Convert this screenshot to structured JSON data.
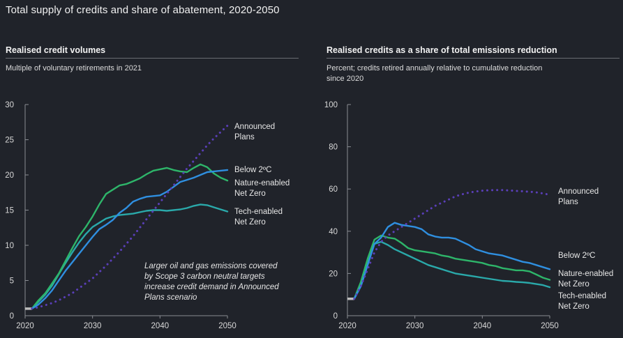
{
  "title": "Total supply of credits and share of abatement, 2020-2050",
  "colors": {
    "announced": "#5a3fb8",
    "below2": "#2f8fe0",
    "nature": "#2eb56a",
    "tech": "#2aa9aa",
    "history": "#bdbdbd",
    "axis": "#8a8d93"
  },
  "chart_data": [
    {
      "type": "line",
      "title": "Realised credit volumes",
      "subtitle": "Multiple of voluntary retirements in 2021",
      "xlim": [
        2020,
        2050
      ],
      "ylim": [
        0,
        30
      ],
      "xticks": [
        "2020",
        "2030",
        "2040",
        "2050"
      ],
      "yticks": [
        "0",
        "5",
        "10",
        "15",
        "20",
        "25",
        "30"
      ],
      "annotation": [
        "Larger oil and gas emissions covered",
        "by Scope 3 carbon neutral targets",
        "increase credit demand in Announced",
        "Plans scenario"
      ],
      "history": {
        "x": [
          2020,
          2021
        ],
        "y": [
          1,
          1
        ]
      },
      "series": [
        {
          "key": "announced",
          "label": [
            "Announced",
            "Plans"
          ],
          "style": "dotted",
          "x": [
            2021,
            2022,
            2023,
            2024,
            2025,
            2026,
            2027,
            2028,
            2029,
            2030,
            2031,
            2032,
            2033,
            2034,
            2035,
            2036,
            2037,
            2038,
            2039,
            2040,
            2041,
            2042,
            2043,
            2044,
            2045,
            2046,
            2047,
            2048,
            2049,
            2050
          ],
          "y": [
            1.0,
            1.2,
            1.5,
            1.8,
            2.2,
            2.7,
            3.2,
            3.9,
            4.6,
            5.3,
            6.2,
            7.1,
            8.1,
            9.1,
            10.2,
            11.3,
            12.5,
            13.7,
            14.9,
            16.1,
            17.3,
            18.5,
            19.7,
            20.9,
            22.0,
            23.1,
            24.2,
            25.2,
            26.1,
            27.0
          ]
        },
        {
          "key": "below2",
          "label": [
            "Below 2ºC"
          ],
          "style": "solid",
          "x": [
            2021,
            2022,
            2023,
            2024,
            2025,
            2026,
            2027,
            2028,
            2029,
            2030,
            2031,
            2032,
            2033,
            2034,
            2035,
            2036,
            2037,
            2038,
            2039,
            2040,
            2041,
            2042,
            2043,
            2044,
            2045,
            2046,
            2047,
            2048,
            2049,
            2050
          ],
          "y": [
            1.0,
            1.6,
            2.5,
            3.6,
            5.0,
            6.4,
            7.6,
            8.8,
            10.0,
            11.2,
            12.3,
            12.9,
            13.6,
            14.6,
            15.3,
            16.2,
            16.6,
            16.9,
            17.0,
            17.1,
            17.6,
            18.3,
            19.0,
            19.3,
            19.6,
            20.0,
            20.4,
            20.5,
            20.6,
            20.7
          ]
        },
        {
          "key": "nature",
          "label": [
            "Nature-enabled",
            "Net Zero"
          ],
          "style": "solid",
          "x": [
            2021,
            2022,
            2023,
            2024,
            2025,
            2026,
            2027,
            2028,
            2029,
            2030,
            2031,
            2032,
            2033,
            2034,
            2035,
            2036,
            2037,
            2038,
            2039,
            2040,
            2041,
            2042,
            2043,
            2044,
            2045,
            2046,
            2047,
            2048,
            2049,
            2050
          ],
          "y": [
            1.0,
            2.2,
            3.2,
            4.6,
            6.0,
            7.8,
            9.6,
            11.3,
            12.6,
            14.1,
            15.8,
            17.3,
            17.9,
            18.5,
            18.7,
            19.1,
            19.5,
            20.1,
            20.6,
            20.8,
            21.0,
            20.7,
            20.5,
            20.4,
            21.0,
            21.5,
            21.1,
            20.2,
            19.6,
            19.2
          ]
        },
        {
          "key": "tech",
          "label": [
            "Tech-enabled",
            "Net Zero"
          ],
          "style": "solid",
          "x": [
            2021,
            2022,
            2023,
            2024,
            2025,
            2026,
            2027,
            2028,
            2029,
            2030,
            2031,
            2032,
            2033,
            2034,
            2035,
            2036,
            2037,
            2038,
            2039,
            2040,
            2041,
            2042,
            2043,
            2044,
            2045,
            2046,
            2047,
            2048,
            2049,
            2050
          ],
          "y": [
            1.0,
            2.0,
            3.0,
            4.3,
            5.9,
            7.5,
            9.0,
            10.4,
            11.6,
            12.6,
            13.2,
            13.8,
            14.1,
            14.3,
            14.4,
            14.5,
            14.7,
            14.9,
            15.0,
            15.0,
            14.9,
            15.0,
            15.1,
            15.3,
            15.6,
            15.8,
            15.7,
            15.4,
            15.1,
            14.8
          ]
        }
      ]
    },
    {
      "type": "line",
      "title": "Realised credits as a share of total emissions reduction",
      "subtitle": [
        "Percent; credits retired annually relative to cumulative reduction",
        "since 2020"
      ],
      "xlim": [
        2020,
        2050
      ],
      "ylim": [
        0,
        100
      ],
      "xticks": [
        "2020",
        "2030",
        "2040",
        "2050"
      ],
      "yticks": [
        "0",
        "20",
        "40",
        "60",
        "80",
        "100"
      ],
      "history": {
        "x": [
          2020,
          2021
        ],
        "y": [
          8,
          8
        ]
      },
      "series": [
        {
          "key": "announced",
          "label": [
            "Announced",
            "Plans"
          ],
          "style": "dotted",
          "x": [
            2021,
            2022,
            2023,
            2024,
            2025,
            2026,
            2027,
            2028,
            2029,
            2030,
            2031,
            2032,
            2033,
            2034,
            2035,
            2036,
            2037,
            2038,
            2039,
            2040,
            2041,
            2042,
            2043,
            2044,
            2045,
            2046,
            2047,
            2048,
            2049,
            2050
          ],
          "y": [
            8,
            14,
            22,
            30,
            35,
            38,
            40,
            42,
            44,
            46,
            48,
            50,
            52,
            53.5,
            55,
            56.5,
            57.5,
            58.3,
            58.8,
            59.2,
            59.4,
            59.5,
            59.5,
            59.3,
            59.1,
            58.9,
            58.7,
            58.4,
            57.9,
            57.3
          ]
        },
        {
          "key": "below2",
          "label": [
            "Below 2ºC"
          ],
          "style": "solid",
          "x": [
            2021,
            2022,
            2023,
            2024,
            2025,
            2026,
            2027,
            2028,
            2029,
            2030,
            2031,
            2032,
            2033,
            2034,
            2035,
            2036,
            2037,
            2038,
            2039,
            2040,
            2041,
            2042,
            2043,
            2044,
            2045,
            2046,
            2047,
            2048,
            2049,
            2050
          ],
          "y": [
            8,
            14,
            24,
            34,
            37,
            42,
            44,
            43,
            42.5,
            42,
            41,
            38.5,
            37.5,
            37,
            37,
            36.5,
            35,
            33.5,
            31.5,
            30.5,
            29.5,
            29,
            28.5,
            27.5,
            26.5,
            25.5,
            25,
            24,
            23,
            22
          ]
        },
        {
          "key": "nature",
          "label": [
            "Nature-enabled",
            "Net Zero"
          ],
          "style": "solid",
          "x": [
            2021,
            2022,
            2023,
            2024,
            2025,
            2026,
            2027,
            2028,
            2029,
            2030,
            2031,
            2032,
            2033,
            2034,
            2035,
            2036,
            2037,
            2038,
            2039,
            2040,
            2041,
            2042,
            2043,
            2044,
            2045,
            2046,
            2047,
            2048,
            2049,
            2050
          ],
          "y": [
            8,
            16,
            27,
            36,
            38,
            37,
            36.5,
            34.5,
            32,
            31,
            30.5,
            30,
            29.5,
            28.5,
            28,
            27,
            26.5,
            26,
            25.5,
            25,
            24,
            23.5,
            22.5,
            22,
            21.5,
            21.5,
            21,
            19.5,
            18,
            17
          ]
        },
        {
          "key": "tech",
          "label": [
            "Tech-enabled",
            "Net Zero"
          ],
          "style": "solid",
          "x": [
            2021,
            2022,
            2023,
            2024,
            2025,
            2026,
            2027,
            2028,
            2029,
            2030,
            2031,
            2032,
            2033,
            2034,
            2035,
            2036,
            2037,
            2038,
            2039,
            2040,
            2041,
            2042,
            2043,
            2044,
            2045,
            2046,
            2047,
            2048,
            2049,
            2050
          ],
          "y": [
            8,
            15,
            25,
            34,
            35,
            33.5,
            31.5,
            30,
            28.5,
            27,
            25.5,
            24,
            23,
            22,
            21,
            20,
            19.5,
            19,
            18.5,
            18,
            17.5,
            17,
            16.5,
            16.3,
            16,
            15.8,
            15.5,
            15,
            14.5,
            13.5
          ]
        }
      ]
    }
  ]
}
